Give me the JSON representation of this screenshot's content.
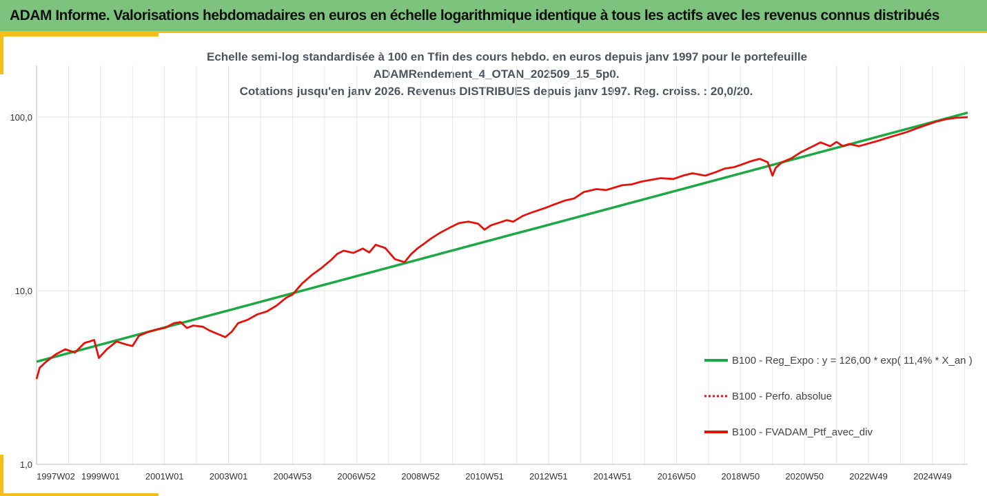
{
  "header": {
    "title": "ADAM Informe. Valorisations hebdomadaires en euros en échelle logarithmique identique à tous les actifs avec les revenus connus distribués"
  },
  "colors": {
    "header_bg": "#7dc37d",
    "accent": "#f1be1c",
    "green_line": "#1ea845",
    "red_line": "#e3120b"
  },
  "chart_data": {
    "type": "line",
    "title_lines": [
      "Echelle semi-log standardisée à 100 en Tfin des cours hebdo.  en euros depuis janv 1997 pour le portefeuille",
      "ADAMRendement_4_OTAN_202509_15_5p0.",
      "Cotations  jusqu'en janv 2026. Revenus DISTRIBUES depuis janv 1997. Reg. croiss. : 20,0/20."
    ],
    "y_scale": "log",
    "ylim": [
      1,
      180
    ],
    "y_ticks": [
      1,
      10,
      100
    ],
    "y_tick_labels": [
      "1,0",
      "10,0",
      "100,0"
    ],
    "xlim": [
      1997.0,
      2026.1
    ],
    "x_ticks": [
      1997.0,
      1999.0,
      2001.0,
      2003.0,
      2005.0,
      2007.0,
      2009.0,
      2011.0,
      2013.0,
      2015.0,
      2017.0,
      2019.0,
      2021.0,
      2023.0,
      2025.0
    ],
    "x_tick_labels": [
      "1997W02",
      "1999W01",
      "2001W01",
      "2003W01",
      "2004W53",
      "2006W52",
      "2008W52",
      "2010W51",
      "2012W51",
      "2014W51",
      "2016W50",
      "2018W50",
      "2020W50",
      "2022W49",
      "2024W49"
    ],
    "grid": "vertical",
    "legend_position": "right",
    "series": [
      {
        "name": "B100 - Reg_Expo : y = 126,00 * exp( 11,4% *  X_an )",
        "style": "solid",
        "color": "#1ea845",
        "x": [
          1997.0,
          2026.1
        ],
        "y": [
          3.9,
          106
        ]
      },
      {
        "name": "B100 - Perfo. absolue",
        "style": "dotted",
        "color": "#e3120b",
        "x": [],
        "y": []
      },
      {
        "name": "B100 - FVADAM_Ptf_avec_div",
        "style": "solid",
        "color": "#e3120b",
        "x": [
          1997.0,
          1997.1,
          1997.3,
          1997.6,
          1997.9,
          1998.2,
          1998.5,
          1998.8,
          1998.95,
          1999.2,
          1999.5,
          1999.8,
          2000.0,
          2000.2,
          2000.5,
          2000.8,
          2001.0,
          2001.3,
          2001.5,
          2001.7,
          2001.9,
          2002.2,
          2002.4,
          2002.7,
          2002.9,
          2003.1,
          2003.3,
          2003.6,
          2003.9,
          2004.2,
          2004.5,
          2004.8,
          2005.0,
          2005.3,
          2005.6,
          2005.9,
          2006.2,
          2006.4,
          2006.6,
          2006.9,
          2007.2,
          2007.4,
          2007.6,
          2007.9,
          2008.2,
          2008.5,
          2008.7,
          2008.9,
          2009.1,
          2009.3,
          2009.6,
          2009.9,
          2010.2,
          2010.5,
          2010.8,
          2011.0,
          2011.2,
          2011.5,
          2011.7,
          2011.9,
          2012.2,
          2012.5,
          2012.9,
          2013.2,
          2013.5,
          2013.8,
          2014.1,
          2014.5,
          2014.8,
          2015.0,
          2015.3,
          2015.6,
          2015.9,
          2016.2,
          2016.5,
          2016.9,
          2017.2,
          2017.5,
          2017.9,
          2018.2,
          2018.5,
          2018.8,
          2019.0,
          2019.3,
          2019.6,
          2019.85,
          2020.0,
          2020.1,
          2020.3,
          2020.6,
          2020.9,
          2021.2,
          2021.5,
          2021.8,
          2022.0,
          2022.2,
          2022.4,
          2022.7,
          2023.0,
          2023.3,
          2023.6,
          2023.9,
          2024.2,
          2024.5,
          2024.8,
          2025.1,
          2025.4,
          2025.7,
          2026.1
        ],
        "y": [
          3.1,
          3.6,
          3.9,
          4.3,
          4.6,
          4.4,
          5.0,
          5.2,
          4.1,
          4.6,
          5.1,
          4.9,
          4.8,
          5.5,
          5.8,
          6.0,
          6.1,
          6.5,
          6.6,
          6.1,
          6.3,
          6.2,
          5.9,
          5.6,
          5.4,
          5.8,
          6.5,
          6.8,
          7.3,
          7.6,
          8.2,
          9.1,
          9.5,
          11.0,
          12.3,
          13.5,
          15.0,
          16.3,
          17.0,
          16.5,
          17.5,
          16.6,
          18.4,
          17.6,
          15.2,
          14.6,
          16.2,
          17.5,
          18.6,
          19.8,
          21.5,
          23.0,
          24.5,
          25.0,
          24.3,
          22.5,
          23.8,
          24.8,
          25.5,
          25.0,
          27.0,
          28.3,
          30.0,
          31.5,
          33.0,
          34.0,
          37.0,
          38.5,
          38.0,
          39.0,
          40.5,
          41.0,
          42.5,
          43.5,
          44.5,
          44.0,
          46.0,
          47.5,
          46.0,
          48.0,
          50.5,
          51.5,
          53.0,
          55.5,
          57.5,
          55.0,
          46.0,
          51.0,
          55.0,
          58.0,
          63.0,
          67.0,
          71.5,
          68.0,
          72.0,
          68.0,
          70.0,
          68.0,
          70.5,
          73.0,
          76.0,
          79.0,
          82.0,
          86.0,
          90.0,
          94.0,
          97.0,
          99.0,
          100.0
        ]
      }
    ]
  }
}
